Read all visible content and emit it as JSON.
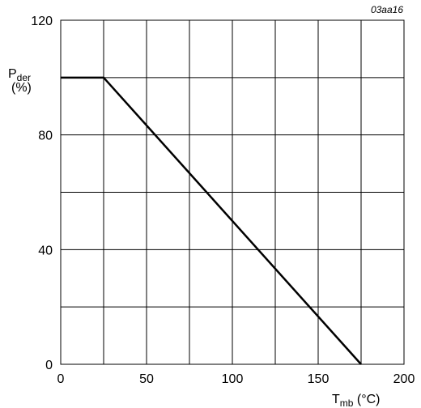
{
  "chart_data": {
    "type": "line",
    "figure_code": "03aa16",
    "ylabel": {
      "main": "P",
      "sub": "der",
      "unit": "(%)"
    },
    "xlabel": {
      "main": "T",
      "sub": "mb",
      "unit": " (°C)"
    },
    "xlim": [
      0,
      200
    ],
    "ylim": [
      0,
      120
    ],
    "x_ticks": [
      0,
      50,
      100,
      150,
      200
    ],
    "y_ticks": [
      0,
      40,
      80,
      120
    ],
    "grid": true,
    "series": [
      {
        "x": [
          0,
          25,
          175
        ],
        "y": [
          100,
          100,
          0
        ]
      }
    ]
  }
}
